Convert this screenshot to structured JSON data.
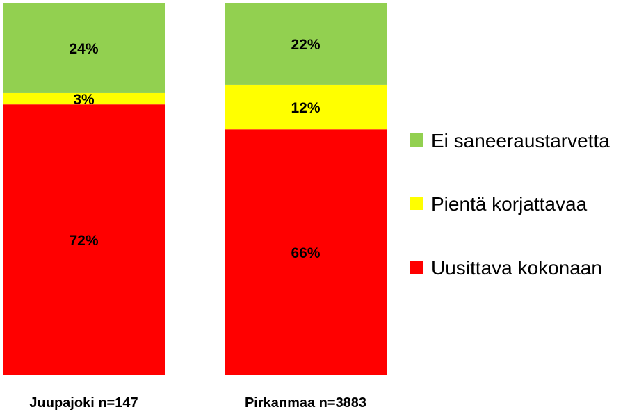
{
  "chart_data": {
    "type": "bar",
    "stacked": true,
    "normalized": true,
    "categories": [
      "Juupajoki n=147",
      "Pirkanmaa n=3883"
    ],
    "series": [
      {
        "name": "Uusittava kokonaan",
        "values": [
          72,
          66
        ],
        "labels": [
          "72%",
          "66%"
        ],
        "color": "#ff0000"
      },
      {
        "name": "Pientä korjattavaa",
        "values": [
          3,
          12
        ],
        "labels": [
          "3%",
          "12%"
        ],
        "color": "#ffff00"
      },
      {
        "name": "Ei saneeraustarvetta",
        "values": [
          24,
          22
        ],
        "labels": [
          "24%",
          "22%"
        ],
        "color": "#92d050"
      }
    ],
    "legend_order": [
      "Ei saneeraustarvetta",
      "Pientä korjattavaa",
      "Uusittava kokonaan"
    ],
    "legend_position": "right",
    "grid": false,
    "title": "",
    "xlabel": "",
    "ylabel": ""
  }
}
